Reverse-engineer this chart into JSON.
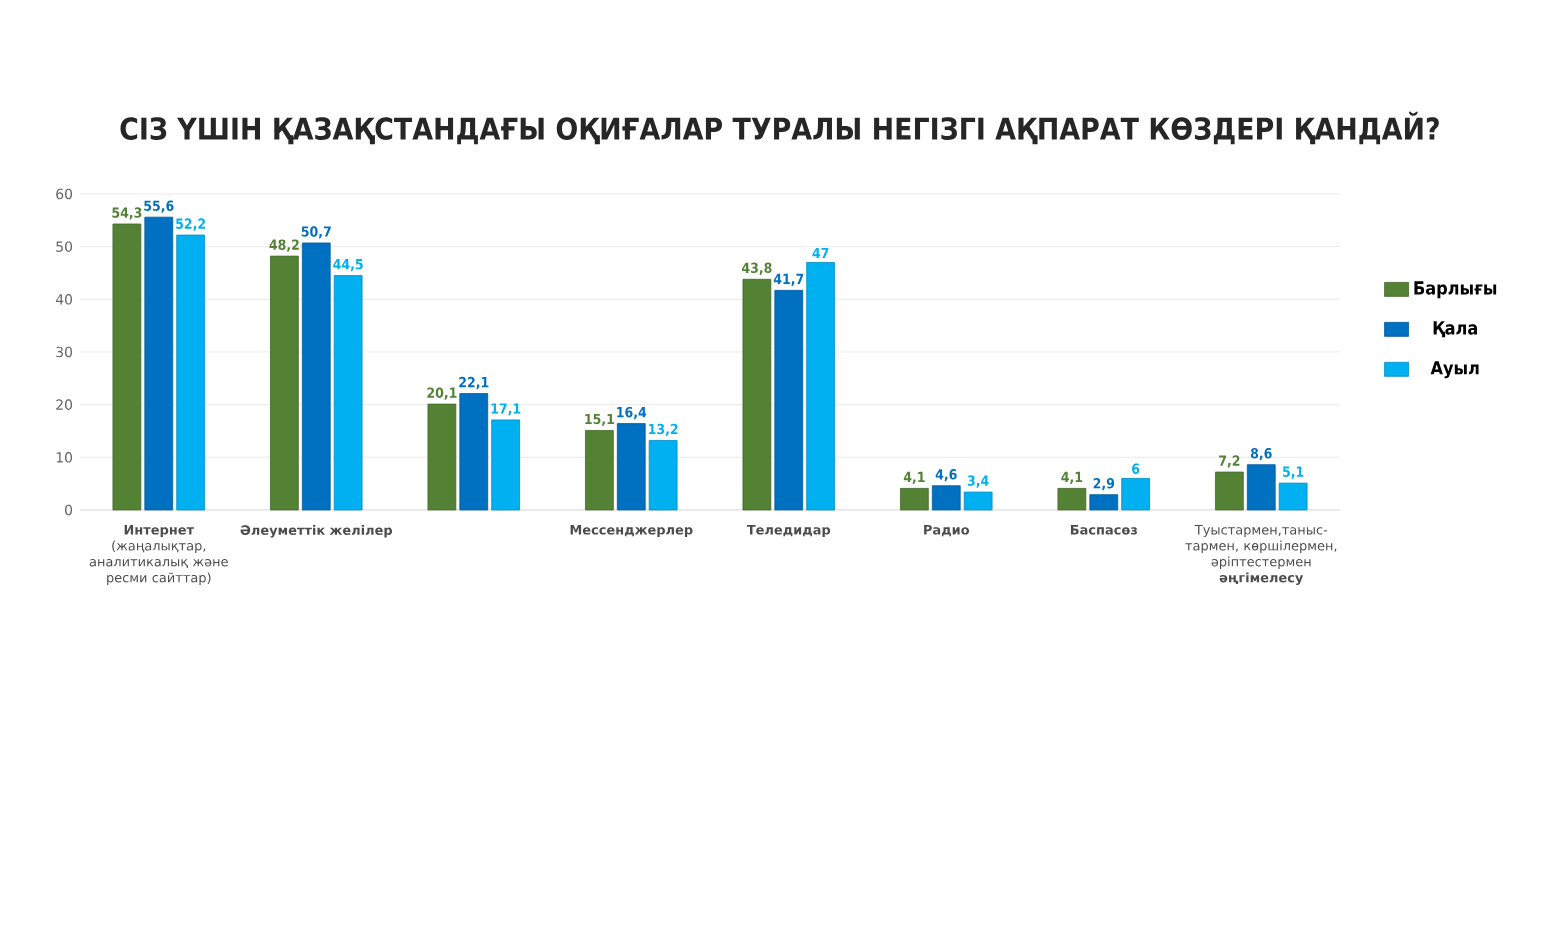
{
  "chart_data": {
    "type": "bar",
    "title": "СІЗ ҮШІН ҚАЗАҚСТАНДАҒЫ ОҚИҒАЛАР ТУРАЛЫ НЕГІЗГІ АҚПАРАТ КӨЗДЕРІ ҚАНДАЙ?",
    "categories": [
      "**Интернет** (жаңалықтар, аналитикалық және ресми сайттар)",
      "**Әлеуметтік желілер**",
      null,
      "**Мессенджерлер**",
      "**Теледидар**",
      "**Радио**",
      "**Баспасөз**",
      "Туыстармен,таныс-тармен, көршілермен, әріптестермен **әңгімелесу**"
    ],
    "series": [
      {
        "name": "Барлығы",
        "color": "#548235",
        "values": [
          54.3,
          48.2,
          20.1,
          15.1,
          43.8,
          4.1,
          4.1,
          7.2
        ],
        "value_labels": [
          "54,3",
          "48,2",
          "20,1",
          "15,1",
          "43,8",
          "4,1",
          "4,1",
          "7,2"
        ]
      },
      {
        "name": "Қала",
        "color": "#0070c0",
        "values": [
          55.6,
          50.7,
          22.1,
          16.4,
          41.7,
          4.6,
          2.9,
          8.6
        ],
        "value_labels": [
          "55,6",
          "50,7",
          "22,1",
          "16,4",
          "41,7",
          "4,6",
          "2,9",
          "8,6"
        ]
      },
      {
        "name": "Ауыл",
        "color": "#00b0f0",
        "values": [
          52.2,
          44.5,
          17.1,
          13.2,
          47,
          3.4,
          6,
          5.1
        ],
        "value_labels": [
          "52,2",
          "44,5",
          "17,1",
          "13,2",
          "47",
          "3,4",
          "6",
          "5,1"
        ]
      }
    ],
    "ylim": [
      0,
      60
    ],
    "yticks": [
      0,
      10,
      20,
      30,
      40,
      50,
      60
    ],
    "grid": "y",
    "legend": "right"
  }
}
